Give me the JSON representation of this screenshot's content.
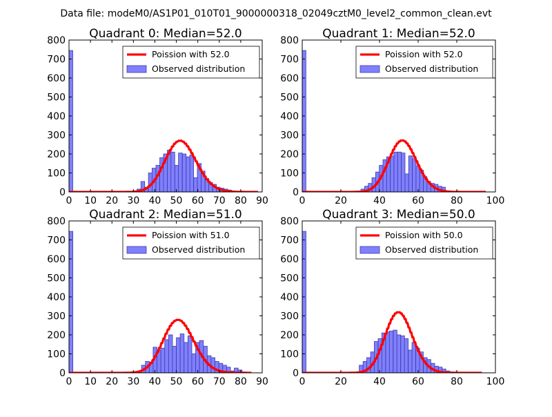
{
  "figure_title": "Data file: modeM0/AS1P01_010T01_9000000318_02049cztM0_level2_common_clean.evt",
  "colors": {
    "hist_fill": "#8080ff",
    "hist_edge": "#3a3aa8",
    "poisson": "#ff0000"
  },
  "chart_data": [
    {
      "type": "bar+line",
      "title": "Quadrant 0: Median=52.0",
      "median": 52.0,
      "xlim": [
        0,
        90
      ],
      "ylim": [
        0,
        800
      ],
      "xticks": [
        0,
        10,
        20,
        30,
        40,
        50,
        60,
        70,
        80,
        90
      ],
      "yticks": [
        0,
        100,
        200,
        300,
        400,
        500,
        600,
        700,
        800
      ],
      "legend": {
        "location": "upper-right",
        "line_label": "Poission with 52.0",
        "bar_label": "Observed distribution"
      },
      "bin_width": 1.76,
      "histogram": {
        "x": [
          0,
          31.7,
          33.5,
          35.2,
          37.0,
          38.7,
          40.5,
          42.3,
          44.0,
          45.8,
          47.5,
          49.3,
          51.0,
          52.8,
          54.6,
          56.3,
          58.1,
          59.8,
          61.6,
          63.4,
          65.1,
          66.9,
          68.6,
          70.4,
          72.2,
          73.9,
          75.7,
          77.4,
          79.2,
          81.0
        ],
        "counts": [
          745,
          15,
          55,
          25,
          100,
          125,
          140,
          180,
          200,
          220,
          210,
          140,
          205,
          200,
          185,
          195,
          75,
          150,
          110,
          70,
          50,
          40,
          25,
          20,
          15,
          10,
          5,
          3,
          2,
          1
        ]
      },
      "poisson": {
        "mean": 52.0,
        "x_range": [
          0,
          88
        ]
      }
    },
    {
      "type": "bar+line",
      "title": "Quadrant 1: Median=52.0",
      "median": 52.0,
      "xlim": [
        0,
        100
      ],
      "ylim": [
        0,
        800
      ],
      "xticks": [
        0,
        20,
        40,
        60,
        80,
        100
      ],
      "yticks": [
        0,
        100,
        200,
        300,
        400,
        500,
        600,
        700,
        800
      ],
      "legend": {
        "location": "upper-right",
        "line_label": "Poission with 52.0",
        "bar_label": "Observed distribution"
      },
      "bin_width": 1.9,
      "histogram": {
        "x": [
          0,
          28.5,
          30.4,
          32.3,
          34.2,
          36.1,
          38.0,
          39.9,
          41.8,
          43.7,
          45.6,
          47.5,
          49.4,
          51.3,
          53.2,
          55.1,
          57.0,
          58.9,
          60.8,
          62.7,
          64.6,
          66.5,
          68.4,
          70.3,
          72.2,
          74.1,
          76.0,
          77.9
        ],
        "counts": [
          745,
          5,
          15,
          30,
          45,
          75,
          105,
          140,
          170,
          185,
          190,
          210,
          210,
          205,
          95,
          190,
          175,
          135,
          115,
          80,
          55,
          45,
          40,
          30,
          25,
          5,
          3,
          2
        ]
      },
      "poisson": {
        "mean": 52.0,
        "x_range": [
          0,
          95
        ]
      }
    },
    {
      "type": "bar+line",
      "title": "Quadrant 2: Median=51.0",
      "median": 51.0,
      "xlim": [
        0,
        90
      ],
      "ylim": [
        0,
        800
      ],
      "xticks": [
        0,
        10,
        20,
        30,
        40,
        50,
        60,
        70,
        80,
        90
      ],
      "yticks": [
        0,
        100,
        200,
        300,
        400,
        500,
        600,
        700,
        800
      ],
      "legend": {
        "location": "upper-right",
        "line_label": "Poission with 51.0",
        "bar_label": "Observed distribution"
      },
      "bin_width": 1.8,
      "histogram": {
        "x": [
          0,
          32.0,
          33.8,
          35.6,
          37.4,
          39.2,
          41.0,
          42.8,
          44.6,
          46.4,
          48.2,
          50.0,
          51.8,
          53.6,
          55.4,
          57.2,
          59.0,
          60.8,
          62.6,
          64.4,
          66.2,
          68.0,
          69.8,
          71.6,
          73.4,
          75.2,
          77.0,
          78.8,
          80.6
        ],
        "counts": [
          745,
          5,
          40,
          60,
          55,
          135,
          120,
          130,
          175,
          200,
          140,
          185,
          205,
          160,
          195,
          100,
          160,
          170,
          140,
          90,
          80,
          60,
          50,
          40,
          30,
          10,
          25,
          15,
          5
        ]
      },
      "poisson": {
        "mean": 51.0,
        "x_range": [
          0,
          85
        ]
      }
    },
    {
      "type": "bar+line",
      "title": "Quadrant 3: Median=50.0",
      "median": 50.0,
      "xlim": [
        0,
        100
      ],
      "ylim": [
        0,
        800
      ],
      "xticks": [
        0,
        20,
        40,
        60,
        80,
        100
      ],
      "yticks": [
        0,
        100,
        200,
        300,
        400,
        500,
        600,
        700,
        800
      ],
      "legend": {
        "location": "upper-right",
        "line_label": "Poission with 50.0",
        "bar_label": "Observed distribution"
      },
      "bin_width": 1.95,
      "histogram": {
        "x": [
          0,
          29.5,
          31.5,
          33.4,
          35.4,
          37.3,
          39.3,
          41.2,
          43.2,
          45.1,
          47.1,
          49.0,
          51.0,
          52.9,
          54.9,
          56.8,
          58.8,
          60.7,
          62.7,
          64.6,
          66.6,
          68.5,
          70.5,
          72.4,
          74.4,
          76.3,
          78.3,
          80.2
        ],
        "counts": [
          745,
          40,
          60,
          80,
          110,
          165,
          180,
          210,
          215,
          220,
          225,
          200,
          195,
          180,
          120,
          160,
          130,
          110,
          80,
          70,
          50,
          35,
          30,
          20,
          10,
          5,
          3,
          2
        ]
      },
      "poisson": {
        "mean": 50.0,
        "x_range": [
          0,
          93
        ]
      }
    }
  ]
}
